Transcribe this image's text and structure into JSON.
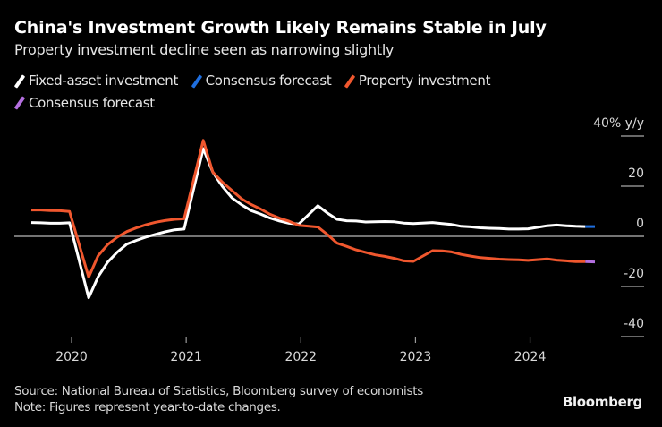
{
  "header": {
    "title": "China's Investment Growth Likely Remains Stable in July",
    "subtitle": "Property investment decline seen as narrowing slightly"
  },
  "legend": [
    {
      "label": "Fixed-asset investment",
      "color": "#ffffff"
    },
    {
      "label": "Consensus forecast",
      "color": "#1f6fe0"
    },
    {
      "label": "Property investment",
      "color": "#f0572e"
    },
    {
      "label": "Consensus forecast",
      "color": "#b46fe0"
    }
  ],
  "footer": {
    "source": "Source: National Bureau of Statistics, Bloomberg survey of economists",
    "note": "Note: Figures represent year-to-date changes.",
    "logo": "Bloomberg"
  },
  "chart_data": {
    "type": "line",
    "title": "China's Investment Growth Likely Remains Stable in July",
    "subtitle": "Property investment decline seen as narrowing slightly",
    "xlabel": "",
    "ylabel": "% y/y",
    "ylim": [
      -40,
      40
    ],
    "y_ticks": [
      {
        "value": 40,
        "label": "40% y/y"
      },
      {
        "value": 20,
        "label": "20"
      },
      {
        "value": 0,
        "label": "0"
      },
      {
        "value": -20,
        "label": "-20"
      },
      {
        "value": -40,
        "label": "-40"
      }
    ],
    "x_ticks": [
      "2020",
      "2021",
      "2022",
      "2023",
      "2024"
    ],
    "x_range": [
      "2019-08",
      "2024-07"
    ],
    "legend_position": "top-left",
    "grid": false,
    "zero_line": true,
    "x": [
      "2019-08",
      "2019-09",
      "2019-10",
      "2019-11",
      "2019-12",
      "2020-02",
      "2020-03",
      "2020-04",
      "2020-05",
      "2020-06",
      "2020-07",
      "2020-08",
      "2020-09",
      "2020-10",
      "2020-11",
      "2020-12",
      "2021-02",
      "2021-03",
      "2021-04",
      "2021-05",
      "2021-06",
      "2021-07",
      "2021-08",
      "2021-09",
      "2021-10",
      "2021-11",
      "2021-12",
      "2022-02",
      "2022-03",
      "2022-04",
      "2022-05",
      "2022-06",
      "2022-07",
      "2022-08",
      "2022-09",
      "2022-10",
      "2022-11",
      "2022-12",
      "2023-02",
      "2023-03",
      "2023-04",
      "2023-05",
      "2023-06",
      "2023-07",
      "2023-08",
      "2023-09",
      "2023-10",
      "2023-11",
      "2023-12",
      "2024-02",
      "2024-03",
      "2024-04",
      "2024-05",
      "2024-06"
    ],
    "series": [
      {
        "name": "Fixed-asset investment",
        "color": "#ffffff",
        "values": [
          5.5,
          5.4,
          5.2,
          5.2,
          5.4,
          -24.5,
          -16.1,
          -10.3,
          -6.3,
          -3.1,
          -1.6,
          -0.3,
          0.8,
          1.8,
          2.6,
          2.9,
          35.0,
          25.6,
          19.9,
          15.4,
          12.6,
          10.3,
          8.9,
          7.3,
          6.1,
          5.2,
          4.9,
          12.2,
          9.3,
          6.8,
          6.2,
          6.1,
          5.7,
          5.8,
          5.9,
          5.8,
          5.3,
          5.1,
          5.5,
          5.1,
          4.7,
          4.0,
          3.8,
          3.4,
          3.2,
          3.1,
          2.9,
          2.9,
          3.0,
          4.2,
          4.5,
          4.2,
          4.0,
          3.9
        ]
      },
      {
        "name": "Consensus forecast",
        "color": "#1f6fe0",
        "x": [
          "2024-06",
          "2024-07"
        ],
        "values": [
          3.9,
          3.9
        ]
      },
      {
        "name": "Property investment",
        "color": "#f0572e",
        "values": [
          10.5,
          10.5,
          10.3,
          10.2,
          9.9,
          -16.3,
          -7.7,
          -3.3,
          -0.3,
          1.9,
          3.4,
          4.6,
          5.6,
          6.3,
          6.8,
          7.0,
          38.3,
          25.6,
          21.6,
          18.3,
          15.0,
          12.7,
          10.9,
          8.8,
          7.2,
          6.0,
          4.4,
          3.7,
          0.7,
          -2.7,
          -4.0,
          -5.4,
          -6.4,
          -7.4,
          -8.0,
          -8.8,
          -9.8,
          -10.0,
          -5.7,
          -5.8,
          -6.2,
          -7.2,
          -7.9,
          -8.5,
          -8.8,
          -9.1,
          -9.3,
          -9.4,
          -9.6,
          -9.0,
          -9.5,
          -9.8,
          -10.1,
          -10.1
        ]
      },
      {
        "name": "Consensus forecast",
        "color": "#b46fe0",
        "x": [
          "2024-06",
          "2024-07"
        ],
        "values": [
          -10.1,
          -10.2
        ]
      }
    ]
  }
}
